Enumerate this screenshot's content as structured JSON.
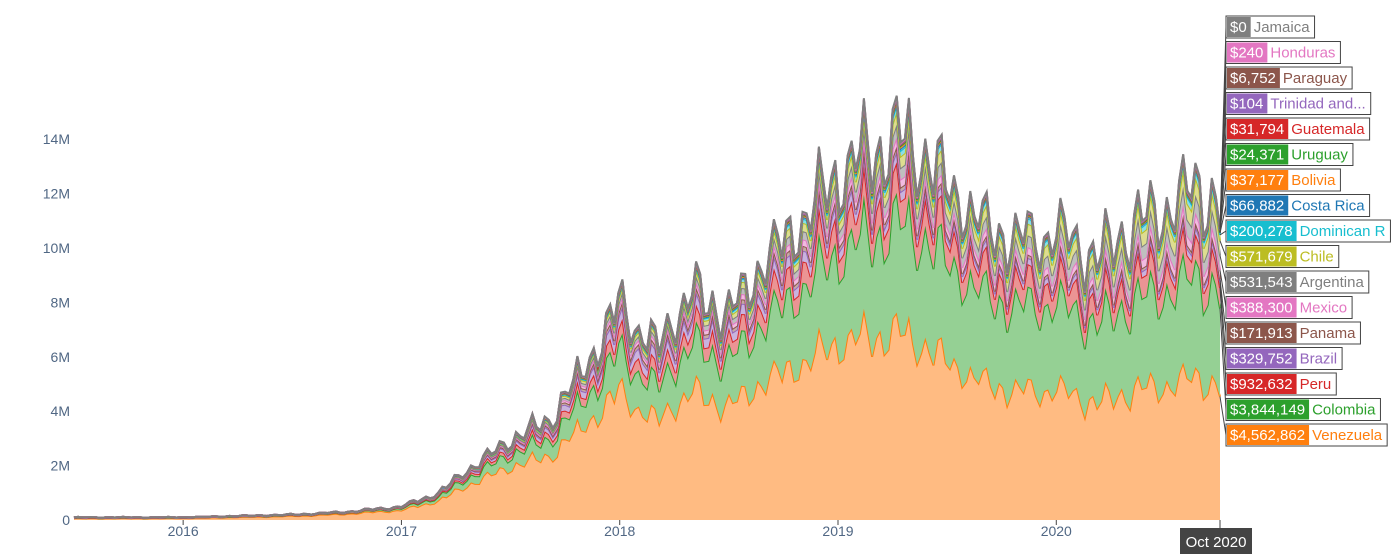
{
  "chart_data": {
    "type": "area",
    "stacked": true,
    "x_range": [
      "2015-07",
      "2020-10"
    ],
    "ylim": [
      0,
      15000000
    ],
    "y_ticks": [
      {
        "value": 0,
        "label": "0"
      },
      {
        "value": 2000000,
        "label": "2M"
      },
      {
        "value": 4000000,
        "label": "4M"
      },
      {
        "value": 6000000,
        "label": "6M"
      },
      {
        "value": 8000000,
        "label": "8M"
      },
      {
        "value": 10000000,
        "label": "10M"
      },
      {
        "value": 12000000,
        "label": "12M"
      },
      {
        "value": 14000000,
        "label": "14M"
      }
    ],
    "x_ticks": [
      {
        "value": "2016-01",
        "label": "2016"
      },
      {
        "value": "2017-01",
        "label": "2017"
      },
      {
        "value": "2018-01",
        "label": "2018"
      },
      {
        "value": "2019-01",
        "label": "2019"
      },
      {
        "value": "2020-01",
        "label": "2020"
      }
    ],
    "hover_x_label": "Oct 2020",
    "grid": false,
    "legend": "hover labels at right edge",
    "total_profile": [
      [
        "2015-07",
        0.1
      ],
      [
        "2015-10",
        0.1
      ],
      [
        "2016-01",
        0.1
      ],
      [
        "2016-04",
        0.15
      ],
      [
        "2016-07",
        0.2
      ],
      [
        "2016-10",
        0.3
      ],
      [
        "2017-01",
        0.5
      ],
      [
        "2017-03",
        1.0
      ],
      [
        "2017-05",
        2.0
      ],
      [
        "2017-07",
        3.0
      ],
      [
        "2017-09",
        3.6
      ],
      [
        "2017-11",
        5.5
      ],
      [
        "2018-01",
        8.0
      ],
      [
        "2018-03",
        6.3
      ],
      [
        "2018-05",
        8.4
      ],
      [
        "2018-07",
        7.6
      ],
      [
        "2018-09",
        9.5
      ],
      [
        "2018-11",
        11.0
      ],
      [
        "2019-01",
        12.8
      ],
      [
        "2019-03",
        13.8
      ],
      [
        "2019-05",
        13.8
      ],
      [
        "2019-07",
        12.6
      ],
      [
        "2019-09",
        10.8
      ],
      [
        "2019-11",
        10.3
      ],
      [
        "2020-01",
        10.7
      ],
      [
        "2020-03",
        9.8
      ],
      [
        "2020-05",
        10.6
      ],
      [
        "2020-07",
        11.5
      ],
      [
        "2020-09",
        12.1
      ],
      [
        "2020-10",
        11.5
      ]
    ],
    "series": [
      {
        "name": "Venezuela",
        "label": "$4,562,862",
        "value": 4562862,
        "color": "#ff7f0e",
        "fill": "#ffbb82",
        "share": [
          0.6,
          0.75,
          0.55,
          0.45,
          0.42
        ]
      },
      {
        "name": "Colombia",
        "label": "$3,844,149",
        "value": 3844149,
        "color": "#2ca02c",
        "fill": "#95d094",
        "share": [
          0.08,
          0.12,
          0.18,
          0.28,
          0.3
        ]
      },
      {
        "name": "Peru",
        "label": "$932,632",
        "value": 932632,
        "color": "#d62728",
        "fill": "#eb9494",
        "share": [
          0.04,
          0.03,
          0.06,
          0.07,
          0.07
        ]
      },
      {
        "name": "Brazil",
        "label": "$329,752",
        "value": 329752,
        "color": "#9467bd",
        "fill": "#c9b3de",
        "share": [
          0.06,
          0.03,
          0.05,
          0.02,
          0.02
        ]
      },
      {
        "name": "Panama",
        "label": "$171,913",
        "value": 171913,
        "color": "#8c564b",
        "fill": "#c6aaa5",
        "share": [
          0.02,
          0.01,
          0.02,
          0.01,
          0.01
        ]
      },
      {
        "name": "Mexico",
        "label": "$388,300",
        "value": 388300,
        "color": "#e377c2",
        "fill": "#f1bbe0",
        "share": [
          0.03,
          0.01,
          0.02,
          0.02,
          0.03
        ]
      },
      {
        "name": "Argentina",
        "label": "$531,543",
        "value": 531543,
        "color": "#7f7f7f",
        "fill": "#bfbfbf",
        "share": [
          0.03,
          0.01,
          0.02,
          0.03,
          0.05
        ]
      },
      {
        "name": "Chile",
        "label": "$571,679",
        "value": 571679,
        "color": "#bcbd22",
        "fill": "#dddd90",
        "share": [
          0.04,
          0.01,
          0.02,
          0.03,
          0.05
        ]
      },
      {
        "name": "Dominican R",
        "label": "$200,278",
        "value": 200278,
        "color": "#17becf",
        "fill": "#8bdee7",
        "share": [
          0.01,
          0.005,
          0.01,
          0.015,
          0.02
        ]
      },
      {
        "name": "Costa Rica",
        "label": "$66,882",
        "value": 66882,
        "color": "#1f77b4",
        "fill": "#8fbbd9",
        "share": [
          0.005,
          0.005,
          0.005,
          0.005,
          0.006
        ]
      },
      {
        "name": "Bolivia",
        "label": "$37,177",
        "value": 37177,
        "color": "#ff7f0e",
        "fill": "#ffbf86",
        "share": [
          0.004,
          0.004,
          0.004,
          0.004,
          0.003
        ]
      },
      {
        "name": "Uruguay",
        "label": "$24,371",
        "value": 24371,
        "color": "#2ca02c",
        "fill": "#95d094",
        "share": [
          0.003,
          0.003,
          0.003,
          0.003,
          0.002
        ]
      },
      {
        "name": "Guatemala",
        "label": "$31,794",
        "value": 31794,
        "color": "#d62728",
        "fill": "#eb9494",
        "share": [
          0.003,
          0.003,
          0.003,
          0.003,
          0.003
        ]
      },
      {
        "name": "Trinidad and...",
        "label": "$104",
        "value": 104,
        "color": "#9467bd",
        "fill": "#c9b3de",
        "share": [
          0.001,
          0.001,
          0.001,
          0.001,
          0.001
        ]
      },
      {
        "name": "Paraguay",
        "label": "$6,752",
        "value": 6752,
        "color": "#8c564b",
        "fill": "#c6aaa5",
        "share": [
          0.002,
          0.002,
          0.002,
          0.002,
          0.002
        ]
      },
      {
        "name": "Honduras",
        "label": "$240",
        "value": 240,
        "color": "#e377c2",
        "fill": "#f1bbe0",
        "share": [
          0.001,
          0.001,
          0.001,
          0.001,
          0.001
        ]
      },
      {
        "name": "Jamaica",
        "label": "$0",
        "value": 0,
        "color": "#7f7f7f",
        "fill": "#bfbfbf",
        "share": [
          0.002,
          0.002,
          0.002,
          0.002,
          0.002
        ]
      }
    ]
  }
}
